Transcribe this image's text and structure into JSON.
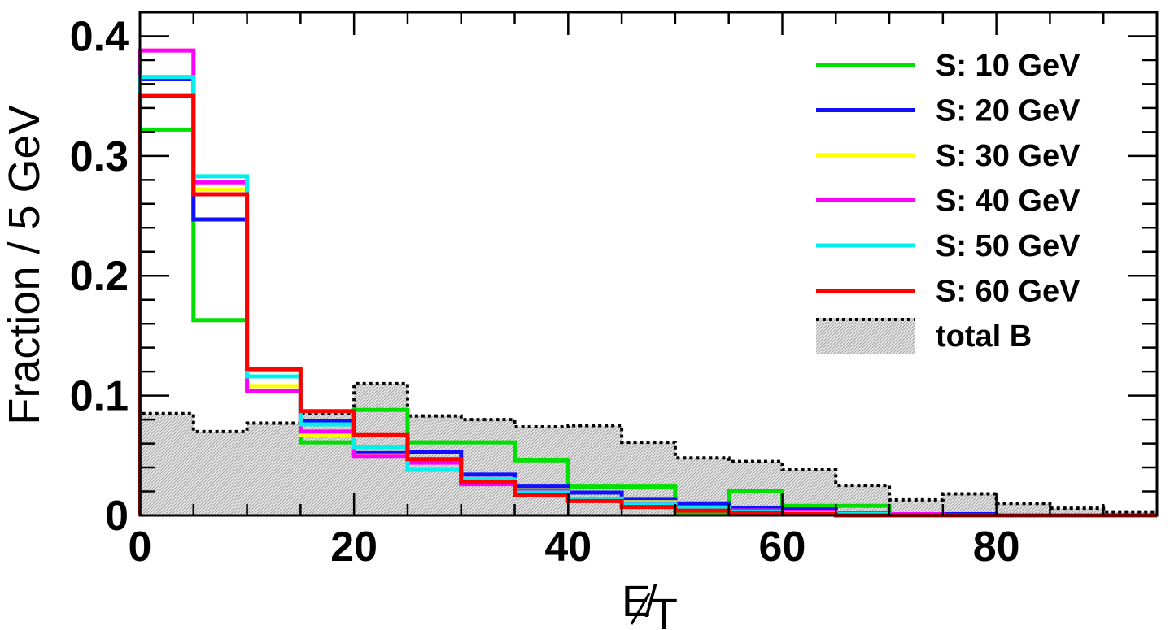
{
  "chart_data": {
    "type": "line",
    "subtype": "step-histogram",
    "title": "",
    "xlabel": "E̸",
    "xlabel_subscript": "T",
    "ylabel": "Fraction / 5 GeV",
    "xlim": [
      0,
      95
    ],
    "ylim": [
      0,
      0.42
    ],
    "xticks": [
      0,
      20,
      40,
      60,
      80
    ],
    "yticks": [
      0,
      0.1,
      0.2,
      0.3,
      0.4
    ],
    "ytick_labels": [
      "0",
      "0.1",
      "0.2",
      "0.3",
      "0.4"
    ],
    "bin_edges": [
      0,
      5,
      10,
      15,
      20,
      25,
      30,
      35,
      40,
      45,
      50,
      55,
      60,
      65,
      70,
      75,
      80,
      85,
      90,
      95
    ],
    "legend_position": "top-right",
    "grid": false,
    "series": [
      {
        "name": "S: 10 GeV",
        "color": "#00e000",
        "style": "solid",
        "values": [
          0.322,
          0.163,
          0.121,
          0.061,
          0.088,
          0.061,
          0.061,
          0.046,
          0.024,
          0.024,
          0.002,
          0.02,
          0.008,
          0.008,
          0.0,
          0.0,
          0.0,
          0.0,
          0.0
        ]
      },
      {
        "name": "S: 20 GeV",
        "color": "#1010ff",
        "style": "solid",
        "values": [
          0.364,
          0.247,
          0.116,
          0.079,
          0.052,
          0.053,
          0.034,
          0.024,
          0.019,
          0.013,
          0.01,
          0.006,
          0.005,
          0.002,
          0.001,
          0.001,
          0.0,
          0.0,
          0.0
        ]
      },
      {
        "name": "S: 30 GeV",
        "color": "#ffff00",
        "style": "solid",
        "values": [
          0.388,
          0.272,
          0.108,
          0.067,
          0.05,
          0.045,
          0.028,
          0.021,
          0.014,
          0.011,
          0.006,
          0.004,
          0.003,
          0.002,
          0.001,
          0.0,
          0.0,
          0.0,
          0.0
        ]
      },
      {
        "name": "S: 40 GeV",
        "color": "#ff00ff",
        "style": "solid",
        "values": [
          0.388,
          0.278,
          0.104,
          0.07,
          0.049,
          0.044,
          0.026,
          0.02,
          0.013,
          0.01,
          0.006,
          0.004,
          0.003,
          0.002,
          0.001,
          0.0,
          0.0,
          0.0,
          0.0
        ]
      },
      {
        "name": "S: 50 GeV",
        "color": "#00f0f0",
        "style": "solid",
        "values": [
          0.366,
          0.283,
          0.116,
          0.076,
          0.057,
          0.038,
          0.03,
          0.019,
          0.014,
          0.009,
          0.006,
          0.003,
          0.002,
          0.001,
          0.0,
          0.0,
          0.0,
          0.0,
          0.0
        ]
      },
      {
        "name": "S: 60 GeV",
        "color": "#ff0000",
        "style": "solid",
        "values": [
          0.35,
          0.268,
          0.122,
          0.087,
          0.067,
          0.047,
          0.028,
          0.017,
          0.012,
          0.007,
          0.004,
          0.002,
          0.001,
          0.0,
          0.0,
          0.0,
          0.0,
          0.0,
          0.0
        ]
      },
      {
        "name": "total B",
        "color": "#000000",
        "style": "dotted",
        "fill": "#d6d6d6",
        "values": [
          0.085,
          0.07,
          0.077,
          0.085,
          0.11,
          0.083,
          0.08,
          0.074,
          0.075,
          0.061,
          0.048,
          0.045,
          0.038,
          0.025,
          0.013,
          0.018,
          0.01,
          0.006,
          0.003
        ]
      }
    ]
  }
}
